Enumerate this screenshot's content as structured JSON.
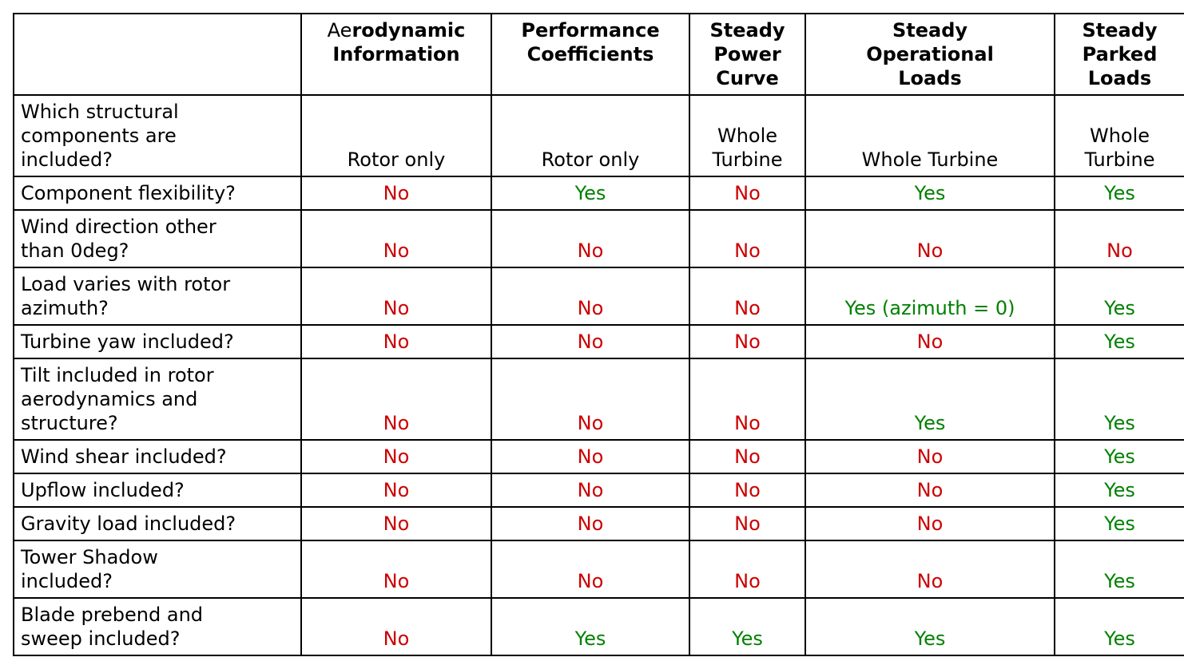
{
  "table": {
    "colors": {
      "red": "#cc0000",
      "green": "#008000",
      "black": "#000000"
    },
    "columns": [
      {
        "id": "question",
        "label": ""
      },
      {
        "id": "aerodynamic-information",
        "label": "Aerodynamic Information",
        "label_light": "Ae",
        "label_bold": "rodynamic\nInformation"
      },
      {
        "id": "performance-coefficients",
        "label": "Performance\nCoefficients"
      },
      {
        "id": "steady-power-curve",
        "label": "Steady\nPower\nCurve"
      },
      {
        "id": "steady-operational-loads",
        "label": "Steady\nOperational\nLoads"
      },
      {
        "id": "steady-parked-loads",
        "label": "Steady\nParked\nLoads"
      }
    ],
    "rows": [
      {
        "question": "Which structural\ncomponents are\nincluded?",
        "answers": [
          {
            "text": "Rotor only",
            "color": "black"
          },
          {
            "text": "Rotor only",
            "color": "black"
          },
          {
            "text": "Whole\nTurbine",
            "color": "black"
          },
          {
            "text": "Whole Turbine",
            "color": "black"
          },
          {
            "text": "Whole\nTurbine",
            "color": "black"
          }
        ]
      },
      {
        "question": "Component flexibility?",
        "answers": [
          {
            "text": "No",
            "color": "red"
          },
          {
            "text": "Yes",
            "color": "green"
          },
          {
            "text": "No",
            "color": "red"
          },
          {
            "text": "Yes",
            "color": "green"
          },
          {
            "text": "Yes",
            "color": "green"
          }
        ]
      },
      {
        "question": "Wind direction other\nthan 0deg?",
        "answers": [
          {
            "text": "No",
            "color": "red"
          },
          {
            "text": "No",
            "color": "red"
          },
          {
            "text": "No",
            "color": "red"
          },
          {
            "text": "No",
            "color": "red"
          },
          {
            "text": "No",
            "color": "red"
          }
        ]
      },
      {
        "question": "Load varies with rotor\nazimuth?",
        "answers": [
          {
            "text": "No",
            "color": "red"
          },
          {
            "text": "No",
            "color": "red"
          },
          {
            "text": "No",
            "color": "red"
          },
          {
            "text": "Yes (azimuth = 0)",
            "color": "green"
          },
          {
            "text": "Yes",
            "color": "green"
          }
        ]
      },
      {
        "question": "Turbine yaw included?",
        "answers": [
          {
            "text": "No",
            "color": "red"
          },
          {
            "text": "No",
            "color": "red"
          },
          {
            "text": "No",
            "color": "red"
          },
          {
            "text": "No",
            "color": "red"
          },
          {
            "text": "Yes",
            "color": "green"
          }
        ]
      },
      {
        "question": "Tilt included in rotor\naerodynamics and\nstructure?",
        "answers": [
          {
            "text": "No",
            "color": "red"
          },
          {
            "text": "No",
            "color": "red"
          },
          {
            "text": "No",
            "color": "red"
          },
          {
            "text": "Yes",
            "color": "green"
          },
          {
            "text": "Yes",
            "color": "green"
          }
        ]
      },
      {
        "question": "Wind shear included?",
        "answers": [
          {
            "text": "No",
            "color": "red"
          },
          {
            "text": "No",
            "color": "red"
          },
          {
            "text": "No",
            "color": "red"
          },
          {
            "text": "No",
            "color": "red"
          },
          {
            "text": "Yes",
            "color": "green"
          }
        ]
      },
      {
        "question": "Upflow included?",
        "answers": [
          {
            "text": "No",
            "color": "red"
          },
          {
            "text": "No",
            "color": "red"
          },
          {
            "text": "No",
            "color": "red"
          },
          {
            "text": "No",
            "color": "red"
          },
          {
            "text": "Yes",
            "color": "green"
          }
        ]
      },
      {
        "question": "Gravity load included?",
        "answers": [
          {
            "text": "No",
            "color": "red"
          },
          {
            "text": "No",
            "color": "red"
          },
          {
            "text": "No",
            "color": "red"
          },
          {
            "text": "No",
            "color": "red"
          },
          {
            "text": "Yes",
            "color": "green"
          }
        ]
      },
      {
        "question": "Tower Shadow\nincluded?",
        "answers": [
          {
            "text": "No",
            "color": "red"
          },
          {
            "text": "No",
            "color": "red"
          },
          {
            "text": "No",
            "color": "red"
          },
          {
            "text": "No",
            "color": "red"
          },
          {
            "text": "Yes",
            "color": "green"
          }
        ]
      },
      {
        "question": "Blade prebend and\nsweep included?",
        "answers": [
          {
            "text": "No",
            "color": "red"
          },
          {
            "text": "Yes",
            "color": "green"
          },
          {
            "text": "Yes",
            "color": "green"
          },
          {
            "text": "Yes",
            "color": "green"
          },
          {
            "text": "Yes",
            "color": "green"
          }
        ]
      }
    ]
  }
}
